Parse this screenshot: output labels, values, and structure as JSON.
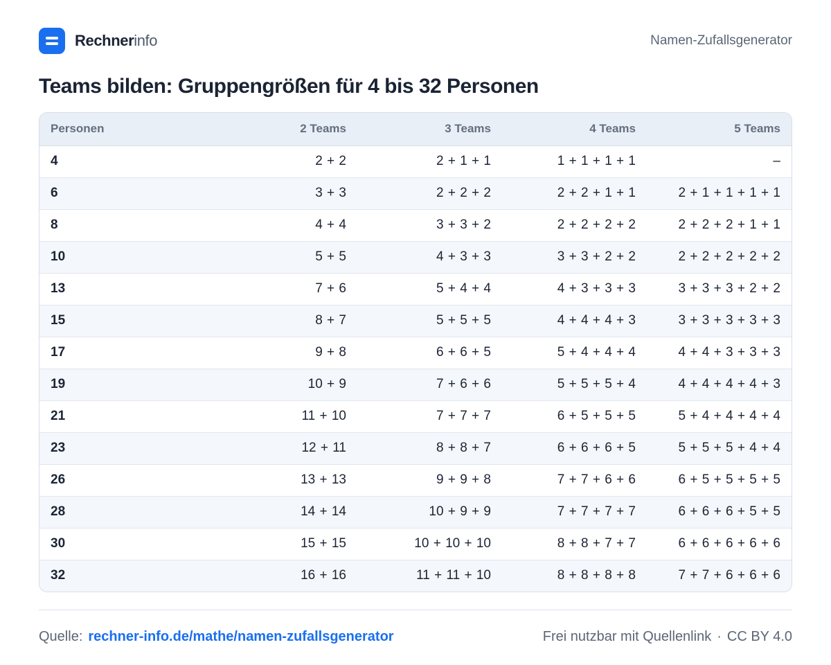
{
  "header": {
    "brand_strong": "Rechner",
    "brand_light": "info",
    "nav_link": "Namen-Zufallsgenerator"
  },
  "title": "Teams bilden: Gruppengrößen für 4 bis 32 Personen",
  "table": {
    "columns": [
      "Personen",
      "2 Teams",
      "3 Teams",
      "4 Teams",
      "5 Teams"
    ],
    "rows": [
      [
        "4",
        "2 + 2",
        "2 + 1 + 1",
        "1 + 1 + 1 + 1",
        "–"
      ],
      [
        "6",
        "3 + 3",
        "2 + 2 + 2",
        "2 + 2 + 1 + 1",
        "2 + 1 + 1 + 1 + 1"
      ],
      [
        "8",
        "4 + 4",
        "3 + 3 + 2",
        "2 + 2 + 2 + 2",
        "2 + 2 + 2 + 1 + 1"
      ],
      [
        "10",
        "5 + 5",
        "4 + 3 + 3",
        "3 + 3 + 2 + 2",
        "2 + 2 + 2 + 2 + 2"
      ],
      [
        "13",
        "7 + 6",
        "5 + 4 + 4",
        "4 + 3 + 3 + 3",
        "3 + 3 + 3 + 2 + 2"
      ],
      [
        "15",
        "8 + 7",
        "5 + 5 + 5",
        "4 + 4 + 4 + 3",
        "3 + 3 + 3 + 3 + 3"
      ],
      [
        "17",
        "9 + 8",
        "6 + 6 + 5",
        "5 + 4 + 4 + 4",
        "4 + 4 + 3 + 3 + 3"
      ],
      [
        "19",
        "10 + 9",
        "7 + 6 + 6",
        "5 + 5 + 5 + 4",
        "4 + 4 + 4 + 4 + 3"
      ],
      [
        "21",
        "11 + 10",
        "7 + 7 + 7",
        "6 + 5 + 5 + 5",
        "5 + 4 + 4 + 4 + 4"
      ],
      [
        "23",
        "12 + 11",
        "8 + 8 + 7",
        "6 + 6 + 6 + 5",
        "5 + 5 + 5 + 4 + 4"
      ],
      [
        "26",
        "13 + 13",
        "9 + 9 + 8",
        "7 + 7 + 6 + 6",
        "6 + 5 + 5 + 5 + 5"
      ],
      [
        "28",
        "14 + 14",
        "10 + 9 + 9",
        "7 + 7 + 7 + 7",
        "6 + 6 + 6 + 5 + 5"
      ],
      [
        "30",
        "15 + 15",
        "10 + 10 + 10",
        "8 + 8 + 7 + 7",
        "6 + 6 + 6 + 6 + 6"
      ],
      [
        "32",
        "16 + 16",
        "11 + 11 + 10",
        "8 + 8 + 8 + 8",
        "7 + 7 + 6 + 6 + 6"
      ]
    ]
  },
  "footer": {
    "source_label": "Quelle:",
    "source_link": "rechner-info.de/mathe/namen-zufallsgenerator",
    "license_text": "Frei nutzbar mit Quellenlink",
    "separator": "·",
    "license": "CC BY 4.0"
  },
  "colors": {
    "accent": "#1a6ff0",
    "text": "#1b2434",
    "muted": "#5b6675",
    "header_bg": "#e9eff6",
    "stripe_bg": "#f4f7fb"
  }
}
